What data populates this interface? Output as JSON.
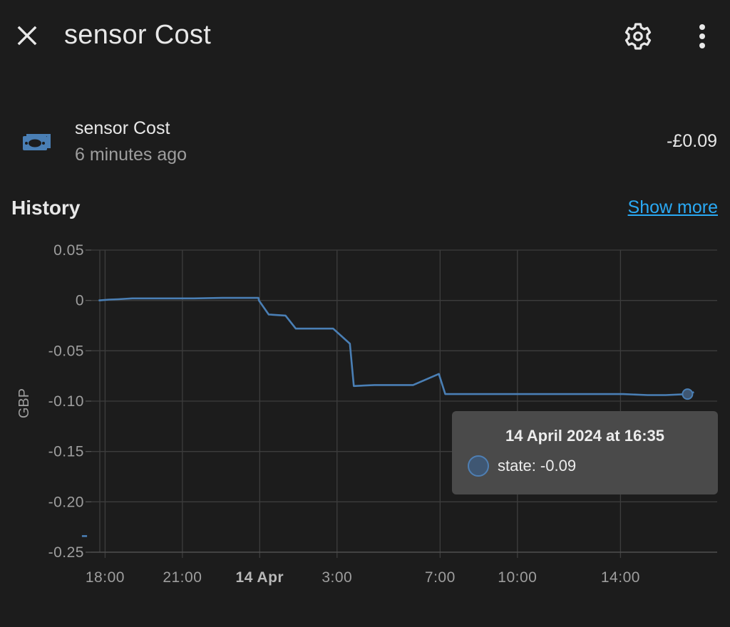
{
  "header": {
    "title": "sensor Cost",
    "close_icon": "close-icon",
    "settings_icon": "gear-icon",
    "menu_icon": "more-vertical-icon"
  },
  "entity": {
    "icon": "cash-icon",
    "name": "sensor Cost",
    "last_changed": "6 minutes ago",
    "value": "-£0.09"
  },
  "history": {
    "heading": "History",
    "show_more": "Show more"
  },
  "colors": {
    "background": "#1c1c1c",
    "line": "#4a7fb5",
    "link": "#2aa9f4",
    "tooltip_bg": "#4a4a4a",
    "icon": "#4a7fb5"
  },
  "tooltip": {
    "title": "14 April 2024 at 16:35",
    "text": "state: -0.09"
  },
  "chart_data": {
    "type": "line",
    "title": "",
    "xlabel": "",
    "ylabel": "GBP",
    "ylim": [
      -0.25,
      0.05
    ],
    "yticks": [
      "0.05",
      "0",
      "-0.05",
      "-0.10",
      "-0.15",
      "-0.20",
      "-0.25"
    ],
    "ytick_values": [
      0.05,
      0,
      -0.05,
      -0.1,
      -0.15,
      -0.2,
      -0.25
    ],
    "xlim": [
      "13 Apr 17:15",
      "14 Apr 16:50"
    ],
    "xticks": [
      {
        "label": "18:00",
        "hours": 0.75,
        "bold": false
      },
      {
        "label": "21:00",
        "hours": 3.75,
        "bold": false
      },
      {
        "label": "14 Apr",
        "hours": 6.75,
        "bold": true
      },
      {
        "label": "3:00",
        "hours": 9.75,
        "bold": false
      },
      {
        "label": "7:00",
        "hours": 13.75,
        "bold": false
      },
      {
        "label": "10:00",
        "hours": 16.75,
        "bold": false
      },
      {
        "label": "14:00",
        "hours": 20.75,
        "bold": false
      }
    ],
    "grid": true,
    "series": [
      {
        "name": "",
        "hours": [
          0.5,
          0.9,
          1.25,
          1.8,
          4.2,
          5.3,
          6.7,
          6.72,
          7.1,
          7.15,
          7.75,
          8.15,
          9.2,
          9.25,
          9.6,
          10.25,
          10.4,
          11.2,
          12.7,
          13.7,
          13.95,
          16.5,
          20.85,
          21.8,
          22.5,
          23.4,
          23.6
        ],
        "values": [
          0.0,
          0.0008,
          0.0012,
          0.002,
          0.002,
          0.0025,
          0.0025,
          0.0,
          -0.014,
          -0.014,
          -0.015,
          -0.028,
          -0.028,
          -0.028,
          -0.028,
          -0.043,
          -0.085,
          -0.084,
          -0.084,
          -0.073,
          -0.093,
          -0.093,
          -0.093,
          -0.094,
          -0.094,
          -0.093,
          -0.091
        ]
      },
      {
        "name": "",
        "hours": [
          -0.15,
          0.05
        ],
        "values": [
          -0.234,
          -0.234
        ]
      }
    ],
    "highlight": {
      "hours": 23.35,
      "value": -0.093
    }
  }
}
